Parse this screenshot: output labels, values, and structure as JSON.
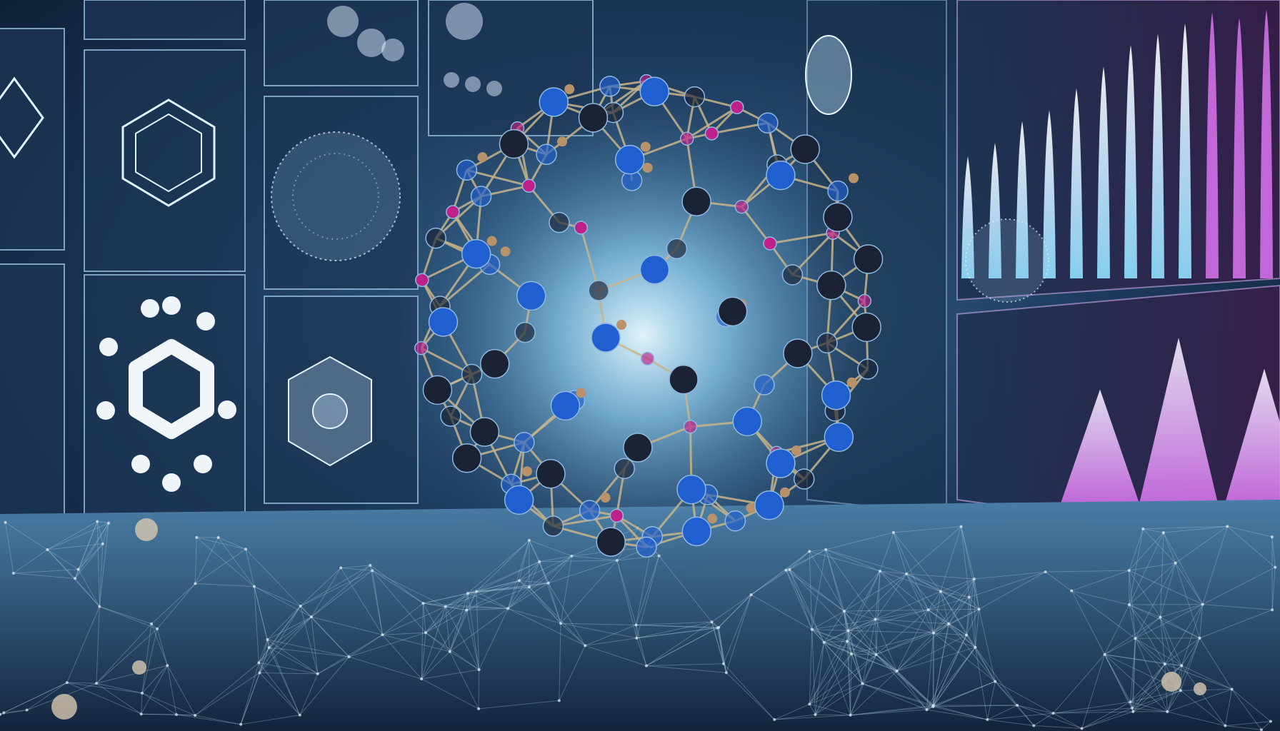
{
  "scene": {
    "subject": "molecular-cage-structure",
    "palette": {
      "background_dark": "#0b1a2e",
      "background_mid": "#1d3a5c",
      "glow": "#d8f4ff",
      "panel_stroke": "#9fc8e6",
      "atom_dark": "#1a2233",
      "atom_blue": "#1f5fd0",
      "atom_magenta": "#c0208a",
      "atom_gold": "#b8926a",
      "bond": "#c8b48a",
      "spike_cyan": "#8fe0ff",
      "spike_violet": "#d070e8",
      "floor_line": "#a8c8e0"
    },
    "spike_levels": [
      0.45,
      0.5,
      0.58,
      0.62,
      0.7,
      0.78,
      0.86,
      0.9,
      0.94,
      0.98,
      0.96,
      0.99
    ],
    "peak_levels": [
      0.55,
      0.8,
      0.65
    ]
  }
}
